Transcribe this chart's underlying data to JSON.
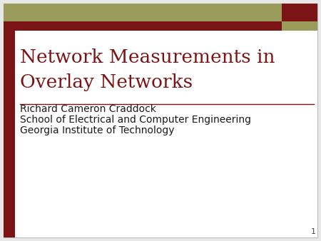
{
  "title_line1": "Network Measurements in",
  "title_line2": "Overlay Networks",
  "author": "Richard Cameron Craddock",
  "affiliation1": "School of Electrical and Computer Engineering",
  "affiliation2": "Georgia Institute of Technology",
  "slide_number": "1",
  "bg_color": "#ffffff",
  "outer_bg": "#e8e8e8",
  "title_color": "#7B1515",
  "text_color": "#1a1a1a",
  "header_dark_red": "#7B1515",
  "header_olive": "#9B9B5A",
  "left_bar_color": "#7B1515",
  "separator_color": "#7B1515",
  "number_color": "#444444",
  "title_fontsize": 19,
  "body_fontsize": 10,
  "number_fontsize": 8
}
